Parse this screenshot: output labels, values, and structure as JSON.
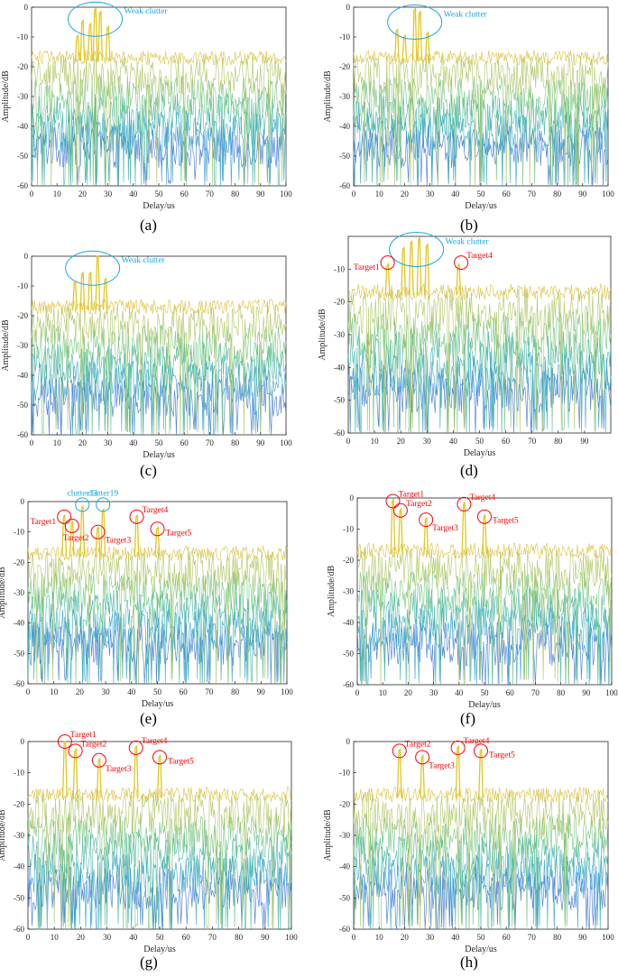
{
  "figure": {
    "captions": [
      "(a)",
      "(b)",
      "(c)",
      "(d)",
      "(e)",
      "(f)",
      "(g)",
      "(h)"
    ]
  },
  "chart_data": [
    {
      "type": "line",
      "subplot": "(a)",
      "xlabel": "Delay/us",
      "ylabel": "Amplitude/dB",
      "xlim": [
        0,
        100
      ],
      "ylim": [
        -60,
        0
      ],
      "xticks": [
        0,
        10,
        20,
        30,
        40,
        50,
        60,
        70,
        80,
        90,
        100
      ],
      "yticks": [
        -60,
        -50,
        -40,
        -30,
        -20,
        -10,
        0
      ],
      "noise_floor_db": -17,
      "peaks": [
        {
          "x": 18,
          "y": -10,
          "kind": "clutter"
        },
        {
          "x": 20,
          "y": -5,
          "kind": "clutter"
        },
        {
          "x": 23,
          "y": -6,
          "kind": "clutter"
        },
        {
          "x": 25,
          "y": -1,
          "kind": "clutter"
        },
        {
          "x": 27,
          "y": -2,
          "kind": "clutter"
        },
        {
          "x": 30,
          "y": -7,
          "kind": "clutter"
        }
      ],
      "annotations": [
        {
          "text": "Weak clutter",
          "x": 25,
          "y": -4,
          "color": "#1aa7e0",
          "shape": "ellipse"
        }
      ]
    },
    {
      "type": "line",
      "subplot": "(b)",
      "xlabel": "Delay/us",
      "ylabel": "Amplitude/dB",
      "xlim": [
        0,
        100
      ],
      "ylim": [
        -60,
        0
      ],
      "xticks": [
        0,
        10,
        20,
        30,
        40,
        50,
        60,
        70,
        80,
        90,
        100
      ],
      "yticks": [
        -60,
        -50,
        -40,
        -30,
        -20,
        -10,
        0
      ],
      "noise_floor_db": -17,
      "peaks": [
        {
          "x": 17,
          "y": -8,
          "kind": "clutter"
        },
        {
          "x": 20,
          "y": -10,
          "kind": "clutter"
        },
        {
          "x": 24,
          "y": -1,
          "kind": "clutter"
        },
        {
          "x": 26,
          "y": -2,
          "kind": "clutter"
        },
        {
          "x": 29,
          "y": -9,
          "kind": "clutter"
        }
      ],
      "annotations": [
        {
          "text": "Weak clutter",
          "x": 24,
          "y": -5,
          "color": "#1aa7e0",
          "shape": "ellipse"
        }
      ]
    },
    {
      "type": "line",
      "subplot": "(c)",
      "xlabel": "Delay/us",
      "ylabel": "Amplitude/dB",
      "xlim": [
        0,
        100
      ],
      "ylim": [
        -60,
        0
      ],
      "xticks": [
        0,
        10,
        20,
        30,
        40,
        50,
        60,
        70,
        80,
        90,
        100
      ],
      "yticks": [
        -60,
        -50,
        -40,
        -30,
        -20,
        -10,
        0
      ],
      "noise_floor_db": -17,
      "peaks": [
        {
          "x": 17,
          "y": -9,
          "kind": "clutter"
        },
        {
          "x": 20,
          "y": -6,
          "kind": "clutter"
        },
        {
          "x": 23,
          "y": -6,
          "kind": "clutter"
        },
        {
          "x": 26,
          "y": 0,
          "kind": "clutter"
        },
        {
          "x": 29,
          "y": -8,
          "kind": "clutter"
        }
      ],
      "annotations": [
        {
          "text": "Weak clutter",
          "x": 24,
          "y": -4,
          "color": "#1aa7e0",
          "shape": "ellipse"
        }
      ]
    },
    {
      "type": "line",
      "subplot": "(d)",
      "xlabel": "Delay/us",
      "ylabel": "Amplitude/dB",
      "xlim": [
        0,
        100
      ],
      "ylim": [
        -60,
        0
      ],
      "xticks": [
        0,
        10,
        20,
        30,
        40,
        50,
        60,
        70,
        80,
        90
      ],
      "yticks": [
        -60,
        -50,
        -40,
        -30,
        -20,
        -10
      ],
      "noise_floor_db": -17,
      "peaks": [
        {
          "x": 15,
          "y": -9,
          "kind": "target"
        },
        {
          "x": 21,
          "y": -4,
          "kind": "clutter"
        },
        {
          "x": 24,
          "y": -2,
          "kind": "clutter"
        },
        {
          "x": 27,
          "y": -1,
          "kind": "clutter"
        },
        {
          "x": 30,
          "y": -3,
          "kind": "clutter"
        },
        {
          "x": 42,
          "y": -9,
          "kind": "target"
        }
      ],
      "annotations": [
        {
          "text": "Weak clutter",
          "x": 26,
          "y": -4,
          "color": "#1aa7e0",
          "shape": "ellipse"
        },
        {
          "text": "Target1",
          "x": 15,
          "y": -8,
          "color": "#ff0000",
          "shape": "circle"
        },
        {
          "text": "Target4",
          "x": 43,
          "y": -8,
          "color": "#ff0000",
          "shape": "circle"
        }
      ]
    },
    {
      "type": "line",
      "subplot": "(e)",
      "xlabel": "Delay/us",
      "ylabel": "Amplitude/dB",
      "xlim": [
        0,
        100
      ],
      "ylim": [
        -60,
        0
      ],
      "xticks": [
        0,
        10,
        20,
        30,
        40,
        50,
        60,
        70,
        80,
        90,
        100
      ],
      "yticks": [
        -60,
        -50,
        -40,
        -30,
        -20,
        -10,
        0
      ],
      "noise_floor_db": -17,
      "peaks": [
        {
          "x": 14,
          "y": -5,
          "kind": "target"
        },
        {
          "x": 17,
          "y": -7,
          "kind": "target"
        },
        {
          "x": 21,
          "y": -2,
          "kind": "clutter"
        },
        {
          "x": 27,
          "y": -9,
          "kind": "target"
        },
        {
          "x": 29,
          "y": -3,
          "kind": "clutter"
        },
        {
          "x": 42,
          "y": -5,
          "kind": "target"
        },
        {
          "x": 50,
          "y": -9,
          "kind": "target"
        }
      ],
      "annotations": [
        {
          "text": "clutter13",
          "x": 21,
          "y": -1,
          "color": "#1aa7e0",
          "shape": "circle"
        },
        {
          "text": "clutter19",
          "x": 29,
          "y": -1,
          "color": "#1aa7e0",
          "shape": "circle"
        },
        {
          "text": "Target1",
          "x": 14,
          "y": -5,
          "color": "#ff0000",
          "shape": "circle"
        },
        {
          "text": "Target2",
          "x": 17,
          "y": -8,
          "color": "#ff0000",
          "shape": "circle"
        },
        {
          "text": "Target3",
          "x": 27,
          "y": -10,
          "color": "#ff0000",
          "shape": "circle"
        },
        {
          "text": "Target4",
          "x": 42,
          "y": -5,
          "color": "#ff0000",
          "shape": "circle"
        },
        {
          "text": "Target5",
          "x": 50,
          "y": -9,
          "color": "#ff0000",
          "shape": "circle"
        }
      ]
    },
    {
      "type": "line",
      "subplot": "(f)",
      "xlabel": "Delay/us",
      "ylabel": "Amplitude/dB",
      "xlim": [
        0,
        100
      ],
      "ylim": [
        -60,
        0
      ],
      "xticks": [
        0,
        10,
        20,
        30,
        40,
        50,
        60,
        70,
        80,
        90,
        100
      ],
      "yticks": [
        -60,
        -50,
        -40,
        -30,
        -20,
        -10,
        0
      ],
      "noise_floor_db": -17,
      "peaks": [
        {
          "x": 14,
          "y": -1,
          "kind": "target"
        },
        {
          "x": 17,
          "y": -4,
          "kind": "target"
        },
        {
          "x": 27,
          "y": -7,
          "kind": "target"
        },
        {
          "x": 42,
          "y": -2,
          "kind": "target"
        },
        {
          "x": 50,
          "y": -6,
          "kind": "target"
        }
      ],
      "annotations": [
        {
          "text": "Target1",
          "x": 14,
          "y": -1,
          "color": "#ff0000",
          "shape": "circle"
        },
        {
          "text": "Target2",
          "x": 17,
          "y": -4,
          "color": "#ff0000",
          "shape": "circle"
        },
        {
          "text": "Target3",
          "x": 27,
          "y": -7,
          "color": "#ff0000",
          "shape": "circle"
        },
        {
          "text": "Target4",
          "x": 42,
          "y": -2,
          "color": "#ff0000",
          "shape": "circle"
        },
        {
          "text": "Target5",
          "x": 50,
          "y": -6,
          "color": "#ff0000",
          "shape": "circle"
        }
      ]
    },
    {
      "type": "line",
      "subplot": "(g)",
      "xlabel": "Delay/us",
      "ylabel": "Amplitude/dB",
      "xlim": [
        0,
        100
      ],
      "ylim": [
        -60,
        0
      ],
      "xticks": [
        0,
        10,
        20,
        30,
        40,
        50,
        60,
        70,
        80,
        90,
        100
      ],
      "yticks": [
        -60,
        -50,
        -40,
        -30,
        -20,
        -10,
        0
      ],
      "noise_floor_db": -17,
      "peaks": [
        {
          "x": 14,
          "y": 0,
          "kind": "target"
        },
        {
          "x": 18,
          "y": -3,
          "kind": "target"
        },
        {
          "x": 27,
          "y": -6,
          "kind": "target"
        },
        {
          "x": 41,
          "y": -2,
          "kind": "target"
        },
        {
          "x": 50,
          "y": -5,
          "kind": "target"
        }
      ],
      "annotations": [
        {
          "text": "Target1",
          "x": 14,
          "y": 0,
          "color": "#ff0000",
          "shape": "circle"
        },
        {
          "text": "Target2",
          "x": 18,
          "y": -3,
          "color": "#ff0000",
          "shape": "circle"
        },
        {
          "text": "Target3",
          "x": 27,
          "y": -6,
          "color": "#ff0000",
          "shape": "circle"
        },
        {
          "text": "Target4",
          "x": 41,
          "y": -2,
          "color": "#ff0000",
          "shape": "circle"
        },
        {
          "text": "Target5",
          "x": 50,
          "y": -5,
          "color": "#ff0000",
          "shape": "circle"
        }
      ]
    },
    {
      "type": "line",
      "subplot": "(h)",
      "xlabel": "Delay/us",
      "ylabel": "Amplitude/dB",
      "xlim": [
        0,
        100
      ],
      "ylim": [
        -60,
        0
      ],
      "xticks": [
        0,
        10,
        20,
        30,
        40,
        50,
        60,
        70,
        80,
        90,
        100
      ],
      "yticks": [
        -60,
        -50,
        -40,
        -30,
        -20,
        -10,
        0
      ],
      "noise_floor_db": -17,
      "peaks": [
        {
          "x": 18,
          "y": -3,
          "kind": "target"
        },
        {
          "x": 27,
          "y": -5,
          "kind": "target"
        },
        {
          "x": 41,
          "y": -2,
          "kind": "target"
        },
        {
          "x": 50,
          "y": -3,
          "kind": "target"
        }
      ],
      "annotations": [
        {
          "text": "Target2",
          "x": 18,
          "y": -3,
          "color": "#ff0000",
          "shape": "circle"
        },
        {
          "text": "Target3",
          "x": 27,
          "y": -5,
          "color": "#ff0000",
          "shape": "circle"
        },
        {
          "text": "Target4",
          "x": 41,
          "y": -2,
          "color": "#ff0000",
          "shape": "circle"
        },
        {
          "text": "Target5",
          "x": 50,
          "y": -3,
          "color": "#ff0000",
          "shape": "circle"
        }
      ]
    }
  ]
}
